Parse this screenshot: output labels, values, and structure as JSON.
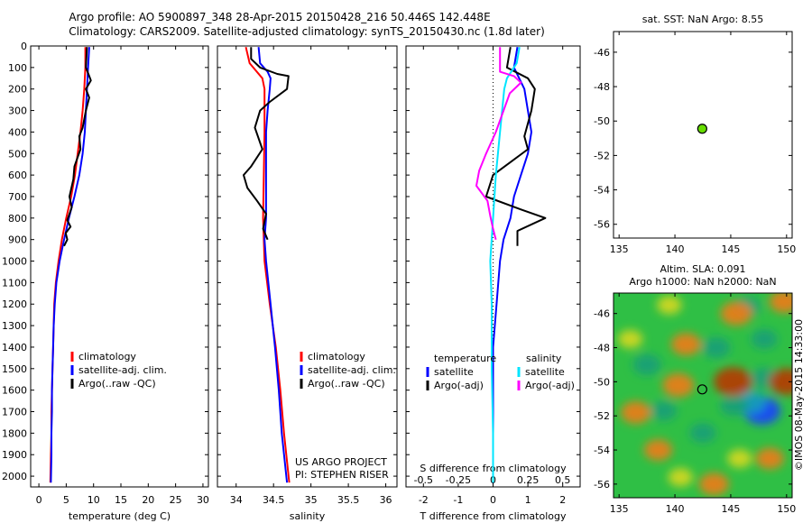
{
  "header": {
    "line1": "Argo profile: AO 5900897_348 28-Apr-2015 20150428_216 50.446S 142.448E",
    "line2": "Climatology: CARS2009. Satellite-adjusted climatology: synTS_20150430.nc (1.8d later)"
  },
  "colors": {
    "climatology": "#ff0000",
    "satellite": "#0000ff",
    "argo": "#000000",
    "satellite_salinity": "#00e5ff",
    "argo_salinity": "#ff00ff",
    "float_marker": "#66dd00"
  },
  "chart_data": [
    {
      "id": "temperature",
      "type": "line",
      "xlabel": "temperature (deg C)",
      "ylabel": "",
      "xlim": [
        -1.5,
        31
      ],
      "ylim": [
        2050,
        0
      ],
      "xticks": [
        0,
        5,
        10,
        15,
        20,
        25,
        30
      ],
      "yticks": [
        0,
        100,
        200,
        300,
        400,
        500,
        600,
        700,
        800,
        900,
        1000,
        1100,
        1200,
        1300,
        1400,
        1500,
        1600,
        1700,
        1800,
        1900,
        2000
      ],
      "legend": [
        "climatology",
        "satellite-adj. clim.",
        "Argo(..raw -QC)"
      ],
      "series": [
        {
          "name": "climatology",
          "color": "#ff0000",
          "points": [
            [
              8.5,
              5
            ],
            [
              8.5,
              100
            ],
            [
              8.3,
              200
            ],
            [
              8.0,
              300
            ],
            [
              7.6,
              400
            ],
            [
              7.1,
              500
            ],
            [
              6.6,
              600
            ],
            [
              5.9,
              700
            ],
            [
              5.0,
              800
            ],
            [
              4.2,
              900
            ],
            [
              3.6,
              1000
            ],
            [
              3.1,
              1100
            ],
            [
              2.8,
              1200
            ],
            [
              2.7,
              1300
            ],
            [
              2.6,
              1400
            ],
            [
              2.5,
              1500
            ],
            [
              2.4,
              1600
            ],
            [
              2.3,
              1700
            ],
            [
              2.3,
              1800
            ],
            [
              2.2,
              1900
            ],
            [
              2.1,
              2030
            ]
          ]
        },
        {
          "name": "satellite-adj. clim.",
          "color": "#0000ff",
          "points": [
            [
              9.2,
              5
            ],
            [
              9.0,
              100
            ],
            [
              8.8,
              200
            ],
            [
              8.6,
              300
            ],
            [
              8.4,
              400
            ],
            [
              8.0,
              500
            ],
            [
              7.4,
              600
            ],
            [
              6.5,
              700
            ],
            [
              5.5,
              800
            ],
            [
              4.6,
              900
            ],
            [
              3.8,
              1000
            ],
            [
              3.2,
              1100
            ],
            [
              2.9,
              1200
            ],
            [
              2.7,
              1300
            ],
            [
              2.6,
              1400
            ],
            [
              2.5,
              1500
            ],
            [
              2.4,
              1600
            ],
            [
              2.4,
              1700
            ],
            [
              2.3,
              1800
            ],
            [
              2.3,
              1900
            ],
            [
              2.2,
              2030
            ]
          ]
        },
        {
          "name": "Argo(..raw -QC)",
          "color": "#000000",
          "points": [
            [
              8.8,
              5
            ],
            [
              8.6,
              100
            ],
            [
              9.2,
              140
            ],
            [
              9.5,
              160
            ],
            [
              8.6,
              200
            ],
            [
              9.2,
              240
            ],
            [
              8.6,
              300
            ],
            [
              8.0,
              380
            ],
            [
              7.4,
              420
            ],
            [
              7.6,
              480
            ],
            [
              6.5,
              560
            ],
            [
              6.3,
              620
            ],
            [
              5.6,
              700
            ],
            [
              6.0,
              750
            ],
            [
              5.2,
              810
            ],
            [
              5.8,
              840
            ],
            [
              4.9,
              870
            ],
            [
              5.2,
              900
            ],
            [
              4.6,
              930
            ]
          ]
        }
      ]
    },
    {
      "id": "salinity",
      "type": "line",
      "xlabel": "salinity",
      "ylabel": "",
      "xlim": [
        33.75,
        36.15
      ],
      "ylim": [
        2050,
        0
      ],
      "xticks": [
        34,
        34.5,
        35,
        35.5,
        36
      ],
      "legend": [
        "climatology",
        "satellite-adj. clim.",
        "Argo(..raw -QC)"
      ],
      "series": [
        {
          "name": "climatology",
          "color": "#ff0000",
          "points": [
            [
              34.13,
              5
            ],
            [
              34.18,
              80
            ],
            [
              34.35,
              150
            ],
            [
              34.38,
              200
            ],
            [
              34.38,
              400
            ],
            [
              34.37,
              600
            ],
            [
              34.36,
              800
            ],
            [
              34.38,
              1000
            ],
            [
              34.45,
              1200
            ],
            [
              34.53,
              1400
            ],
            [
              34.59,
              1600
            ],
            [
              34.64,
              1800
            ],
            [
              34.71,
              2030
            ]
          ]
        },
        {
          "name": "satellite-adj. clim.",
          "color": "#0000ff",
          "points": [
            [
              34.3,
              5
            ],
            [
              34.32,
              80
            ],
            [
              34.42,
              120
            ],
            [
              34.46,
              150
            ],
            [
              34.45,
              200
            ],
            [
              34.42,
              300
            ],
            [
              34.4,
              400
            ],
            [
              34.4,
              600
            ],
            [
              34.4,
              800
            ],
            [
              34.38,
              900
            ],
            [
              34.4,
              1000
            ],
            [
              34.46,
              1200
            ],
            [
              34.52,
              1400
            ],
            [
              34.57,
              1600
            ],
            [
              34.61,
              1800
            ],
            [
              34.68,
              2030
            ]
          ]
        },
        {
          "name": "Argo(..raw -QC)",
          "color": "#000000",
          "points": [
            [
              34.2,
              5
            ],
            [
              34.2,
              60
            ],
            [
              34.32,
              100
            ],
            [
              34.55,
              130
            ],
            [
              34.7,
              140
            ],
            [
              34.68,
              200
            ],
            [
              34.45,
              260
            ],
            [
              34.32,
              300
            ],
            [
              34.25,
              380
            ],
            [
              34.35,
              480
            ],
            [
              34.2,
              560
            ],
            [
              34.1,
              600
            ],
            [
              34.15,
              660
            ],
            [
              34.28,
              720
            ],
            [
              34.4,
              780
            ],
            [
              34.36,
              850
            ],
            [
              34.42,
              900
            ]
          ]
        }
      ],
      "notes": [
        "US ARGO PROJECT",
        "PI: STEPHEN RISER"
      ]
    },
    {
      "id": "difference",
      "type": "line",
      "xlabel": "T difference from climatology",
      "ylabel": "",
      "xlim": [
        -2.5,
        2.5
      ],
      "ylim": [
        2050,
        0
      ],
      "xticks": [
        -2,
        -1,
        0,
        1,
        2
      ],
      "xticklabels": [
        "-2",
        "-1",
        "0",
        "1",
        "2"
      ],
      "xticks_top": [
        -0.5,
        -0.25,
        0,
        0.25,
        0.5
      ],
      "xlabel_secondary": "S difference from climatology",
      "legend_headers": [
        "temperature",
        "salinity"
      ],
      "legend": [
        "satellite",
        "Argo(-adj)",
        "satellite",
        "Argo(-adj)"
      ],
      "series": [
        {
          "name": "satellite",
          "color": "#0000ff",
          "points": [
            [
              0.7,
              5
            ],
            [
              0.6,
              100
            ],
            [
              0.9,
              200
            ],
            [
              1.0,
              300
            ],
            [
              1.1,
              400
            ],
            [
              1.0,
              500
            ],
            [
              0.8,
              600
            ],
            [
              0.6,
              700
            ],
            [
              0.5,
              800
            ],
            [
              0.3,
              900
            ],
            [
              0.2,
              1000
            ],
            [
              0.1,
              1200
            ],
            [
              0.0,
              1400
            ],
            [
              0.0,
              1700
            ],
            [
              0.0,
              2030
            ]
          ]
        },
        {
          "name": "Argo(-adj)",
          "color": "#000000",
          "points": [
            [
              0.5,
              5
            ],
            [
              0.4,
              100
            ],
            [
              1.0,
              150
            ],
            [
              1.2,
              200
            ],
            [
              1.1,
              300
            ],
            [
              0.9,
              420
            ],
            [
              1.0,
              480
            ],
            [
              0.5,
              540
            ],
            [
              0.0,
              600
            ],
            [
              -0.2,
              700
            ],
            [
              0.8,
              760
            ],
            [
              1.5,
              800
            ],
            [
              0.7,
              860
            ],
            [
              0.7,
              930
            ]
          ]
        },
        {
          "name": "satellite",
          "color": "#00e5ff",
          "points": [
            [
              0.19,
              5
            ],
            [
              0.17,
              80
            ],
            [
              0.1,
              150
            ],
            [
              0.08,
              200
            ],
            [
              0.05,
              400
            ],
            [
              0.02,
              600
            ],
            [
              0.0,
              800
            ],
            [
              -0.02,
              1000
            ],
            [
              -0.01,
              1200
            ],
            [
              -0.01,
              1500
            ],
            [
              0.0,
              1800
            ],
            [
              0.0,
              2030
            ]
          ]
        },
        {
          "name": "Argo(-adj)",
          "color": "#ff00ff",
          "points": [
            [
              0.05,
              5
            ],
            [
              0.05,
              60
            ],
            [
              0.05,
              120
            ],
            [
              0.15,
              140
            ],
            [
              0.2,
              170
            ],
            [
              0.12,
              220
            ],
            [
              0.02,
              400
            ],
            [
              -0.05,
              500
            ],
            [
              -0.1,
              580
            ],
            [
              -0.12,
              650
            ],
            [
              -0.04,
              720
            ],
            [
              -0.02,
              790
            ],
            [
              0.0,
              850
            ],
            [
              0.02,
              900
            ]
          ]
        }
      ]
    },
    {
      "id": "sst-map",
      "type": "scatter",
      "title": "sat. SST: NaN Argo: 8.55",
      "xlim": [
        134.5,
        150.5
      ],
      "ylim": [
        -56.8,
        -44.8
      ],
      "xticks": [
        135,
        140,
        145,
        150
      ],
      "yticks": [
        -46,
        -48,
        -50,
        -52,
        -54,
        -56
      ],
      "points": [
        {
          "x": 142.448,
          "y": -50.446
        }
      ]
    },
    {
      "id": "sla-map",
      "type": "heatmap",
      "title": "Altim. SLA: 0.091",
      "subtitle": "Argo h1000: NaN h2000: NaN",
      "xlim": [
        134.5,
        150.5
      ],
      "ylim": [
        -56.8,
        -44.8
      ],
      "xticks": [
        135,
        140,
        145,
        150
      ],
      "yticks": [
        -46,
        -48,
        -50,
        -52,
        -54,
        -56
      ],
      "points": [
        {
          "x": 142.448,
          "y": -50.446
        }
      ],
      "blobs": [
        {
          "x": 147.8,
          "y": -51.7,
          "v": -1.0
        },
        {
          "x": 146.8,
          "y": -51.2,
          "v": -0.6
        },
        {
          "x": 148.0,
          "y": -49.8,
          "v": -0.5
        },
        {
          "x": 137.5,
          "y": -49.0,
          "v": -0.5
        },
        {
          "x": 143.7,
          "y": -48.0,
          "v": -0.5
        },
        {
          "x": 145.3,
          "y": -51.4,
          "v": -0.5
        },
        {
          "x": 139.0,
          "y": -51.7,
          "v": -0.4
        },
        {
          "x": 146.5,
          "y": -45.6,
          "v": -0.4
        },
        {
          "x": 148.0,
          "y": -47.5,
          "v": -0.4
        },
        {
          "x": 142.5,
          "y": -53.0,
          "v": -0.4
        },
        {
          "x": 145.2,
          "y": -50.0,
          "v": 1.1
        },
        {
          "x": 150.0,
          "y": -50.0,
          "v": 0.9
        },
        {
          "x": 145.5,
          "y": -46.0,
          "v": 0.7
        },
        {
          "x": 141.0,
          "y": -47.8,
          "v": 0.6
        },
        {
          "x": 140.3,
          "y": -50.2,
          "v": 0.7
        },
        {
          "x": 136.5,
          "y": -51.8,
          "v": 0.6
        },
        {
          "x": 143.5,
          "y": -56.0,
          "v": 0.6
        },
        {
          "x": 148.5,
          "y": -54.5,
          "v": 0.5
        },
        {
          "x": 138.5,
          "y": -54.0,
          "v": 0.5
        },
        {
          "x": 136.0,
          "y": -47.5,
          "v": 0.3
        },
        {
          "x": 139.5,
          "y": -45.5,
          "v": 0.3
        },
        {
          "x": 149.8,
          "y": -45.3,
          "v": 0.6
        },
        {
          "x": 145.8,
          "y": -54.5,
          "v": 0.3
        },
        {
          "x": 140.5,
          "y": -55.6,
          "v": 0.3
        }
      ],
      "credit": "©IMOS 08-May-2015 14:33:00"
    }
  ]
}
